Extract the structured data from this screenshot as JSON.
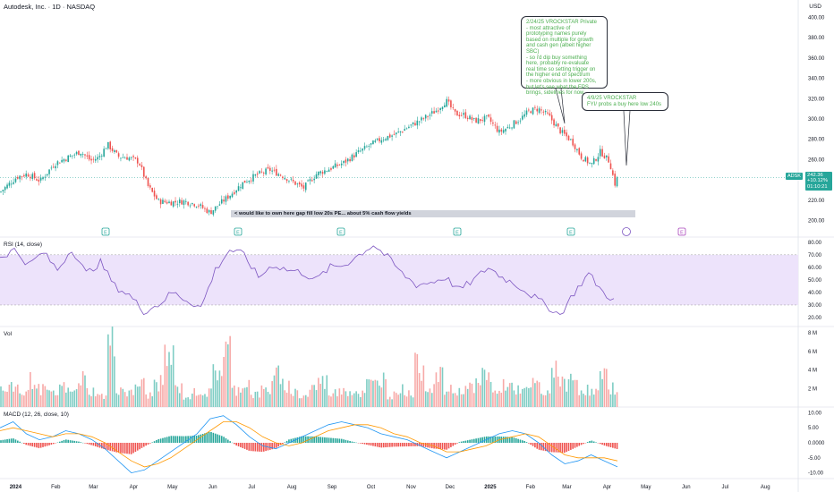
{
  "header": {
    "title": "Autodesk, Inc. · 1D · NASDAQ",
    "currency": "USD"
  },
  "annotations": [
    {
      "lines": [
        "2/24/25 VROCKSTAR Private",
        "- most attractive of",
        "prototyping names purely",
        "based on multiple for growth",
        "and cash gen (albeit higher",
        "SBC)",
        "- so i'd dip buy something",
        "here, probably re-evaluate",
        "real time so setting trigger on",
        "the higher end of spectrum",
        "- more obvious in lower 200s,",
        "but let's see what the EPS",
        "brings, sidelines for now"
      ]
    },
    {
      "lines": [
        "4/9/25 VROCKSTAR",
        "FYI/ probs a buy here low 240s"
      ]
    }
  ],
  "gap_note": "< would like to own here gap fill low 20s PE... about 5% cash flow yields",
  "price_tag": {
    "ticker": "ADSK",
    "price": "242.36",
    "change": "+10.12%",
    "countdown": "01:10:21"
  },
  "event_markers": [
    "E",
    "E",
    "E",
    "E",
    "E",
    "E"
  ],
  "rsi_label": "RSI (14, close)",
  "vol_label": "Vol",
  "macd_label": "MACD (12, 26, close, 10)",
  "colors": {
    "up": "#26a69a",
    "down": "#ef5350",
    "rsi": "#7e57c2",
    "macd": "#2196f3",
    "signal": "#ff9800",
    "rsi_band": "#ede3fb"
  },
  "chart_data": [
    {
      "type": "candlestick",
      "title": "Autodesk, Inc. · 1D · NASDAQ",
      "ylim": [
        190,
        410
      ],
      "yticks": [
        "400.00",
        "380.00",
        "360.00",
        "340.00",
        "320.00",
        "300.00",
        "280.00",
        "260.00",
        "220.00",
        "200.00"
      ],
      "x_labels": [
        "2024",
        "Feb",
        "Mar",
        "Apr",
        "May",
        "Jun",
        "Jul",
        "Aug",
        "Sep",
        "Oct",
        "Nov",
        "Dec",
        "2025",
        "Feb",
        "Mar",
        "Apr",
        "May",
        "Jun",
        "Jul",
        "Aug"
      ],
      "x_dates": [
        "2024-01-01",
        "2024-02-01",
        "2024-03-01",
        "2024-04-01",
        "2024-05-01",
        "2024-06-01",
        "2024-07-01",
        "2024-08-01",
        "2024-09-01",
        "2024-10-01",
        "2024-11-01",
        "2024-12-01",
        "2025-01-01",
        "2025-02-01",
        "2025-03-01",
        "2025-04-01",
        "2025-05-01",
        "2025-06-01",
        "2025-07-01",
        "2025-08-01"
      ],
      "close_path": [
        [
          "2023-12-20",
          228
        ],
        [
          "2024-01-02",
          243
        ],
        [
          "2024-01-10",
          246
        ],
        [
          "2024-01-20",
          239
        ],
        [
          "2024-01-31",
          256
        ],
        [
          "2024-02-10",
          262
        ],
        [
          "2024-02-20",
          268
        ],
        [
          "2024-02-28",
          259
        ],
        [
          "2024-03-05",
          262
        ],
        [
          "2024-03-12",
          275
        ],
        [
          "2024-03-20",
          263
        ],
        [
          "2024-03-28",
          262
        ],
        [
          "2024-04-05",
          258
        ],
        [
          "2024-04-12",
          234
        ],
        [
          "2024-04-20",
          219
        ],
        [
          "2024-04-30",
          218
        ],
        [
          "2024-05-10",
          219
        ],
        [
          "2024-05-20",
          216
        ],
        [
          "2024-05-30",
          208
        ],
        [
          "2024-06-05",
          215
        ],
        [
          "2024-06-15",
          226
        ],
        [
          "2024-06-25",
          238
        ],
        [
          "2024-07-05",
          245
        ],
        [
          "2024-07-15",
          250
        ],
        [
          "2024-07-25",
          244
        ],
        [
          "2024-08-02",
          238
        ],
        [
          "2024-08-10",
          232
        ],
        [
          "2024-08-20",
          246
        ],
        [
          "2024-08-30",
          251
        ],
        [
          "2024-09-10",
          257
        ],
        [
          "2024-09-20",
          266
        ],
        [
          "2024-09-30",
          274
        ],
        [
          "2024-10-10",
          281
        ],
        [
          "2024-10-20",
          285
        ],
        [
          "2024-10-31",
          293
        ],
        [
          "2024-11-10",
          300
        ],
        [
          "2024-11-20",
          308
        ],
        [
          "2024-11-28",
          318
        ],
        [
          "2024-12-05",
          305
        ],
        [
          "2024-12-12",
          304
        ],
        [
          "2024-12-20",
          298
        ],
        [
          "2024-12-30",
          301
        ],
        [
          "2025-01-08",
          287
        ],
        [
          "2025-01-15",
          292
        ],
        [
          "2025-01-25",
          301
        ],
        [
          "2025-01-31",
          308
        ],
        [
          "2025-02-07",
          310
        ],
        [
          "2025-02-15",
          303
        ],
        [
          "2025-02-24",
          288
        ],
        [
          "2025-03-05",
          278
        ],
        [
          "2025-03-12",
          263
        ],
        [
          "2025-03-20",
          255
        ],
        [
          "2025-03-27",
          268
        ],
        [
          "2025-04-03",
          258
        ],
        [
          "2025-04-07",
          236
        ],
        [
          "2025-04-09",
          242
        ]
      ],
      "last_close": 242.36
    },
    {
      "type": "line",
      "title": "RSI (14, close)",
      "ylim": [
        15,
        82
      ],
      "yticks": [
        "80.00",
        "70.00",
        "60.00",
        "50.00",
        "40.00",
        "30.00",
        "20.00"
      ],
      "band": [
        30,
        70
      ],
      "series": [
        {
          "values": [
            68,
            74,
            62,
            72,
            58,
            75,
            55,
            64,
            45,
            38,
            25,
            30,
            40,
            34,
            28,
            58,
            74,
            70,
            52,
            62,
            58,
            56,
            50,
            60,
            62,
            70,
            78,
            68,
            55,
            46,
            48,
            52,
            42,
            50,
            60,
            52,
            46,
            38,
            30,
            22,
            40,
            55,
            40,
            32
          ]
        }
      ]
    },
    {
      "type": "bar",
      "title": "Vol",
      "ylim": [
        0,
        8
      ],
      "yticks": [
        "8 M",
        "6 M",
        "4 M",
        "2 M"
      ],
      "units": "M",
      "series": [
        {
          "values": [
            2.1,
            2.6,
            1.8,
            3.4,
            2.2,
            1.6,
            2.5,
            1.9,
            3.6,
            2.0,
            1.4,
            7.9,
            2.3,
            1.7,
            2.9,
            1.5,
            3.0,
            6.2,
            2.4,
            1.3,
            2.0,
            1.8,
            4.6,
            7.3,
            2.2,
            3.1,
            1.6,
            2.1,
            4.0,
            2.7,
            1.9,
            1.4,
            2.5,
            3.2,
            1.8,
            2.4,
            2.0,
            1.7,
            2.9,
            3.6,
            1.5,
            2.2,
            1.8,
            5.1,
            2.6,
            3.8,
            2.1,
            1.9,
            2.5,
            2.7,
            4.1,
            1.8,
            3.0,
            2.3,
            2.0,
            2.8,
            1.6,
            5.2,
            2.9,
            3.4,
            2.2,
            1.9,
            3.7,
            2.4
          ]
        }
      ]
    },
    {
      "type": "line",
      "title": "MACD (12, 26, close, 10)",
      "ylim": [
        -11,
        11
      ],
      "yticks": [
        "10.00",
        "5.00",
        "0.0000",
        "-5.00",
        "-10.00"
      ],
      "series": [
        {
          "name": "MACD",
          "values": [
            5,
            7,
            3,
            1,
            2,
            4,
            3,
            1,
            -2,
            -6,
            -10,
            -9,
            -6,
            -3,
            0,
            3,
            8,
            9,
            6,
            2,
            -1,
            -2,
            0,
            2,
            4,
            6,
            7,
            6,
            5,
            3,
            2,
            1,
            -1,
            -3,
            -5,
            -3,
            -1,
            1,
            3,
            4,
            3,
            0,
            -4,
            -7,
            -6,
            -4,
            -6,
            -8
          ]
        },
        {
          "name": "Signal",
          "values": [
            4,
            5,
            4,
            3,
            2,
            3,
            3,
            2,
            0,
            -3,
            -6,
            -8,
            -7,
            -5,
            -2,
            1,
            4,
            7,
            7,
            5,
            2,
            0,
            -1,
            0,
            2,
            4,
            5,
            6,
            6,
            5,
            3,
            2,
            0,
            -1,
            -3,
            -3,
            -2,
            -1,
            1,
            2,
            3,
            2,
            -1,
            -4,
            -5,
            -5,
            -5,
            -6
          ]
        }
      ],
      "histogram": [
        0.8,
        1.5,
        -0.7,
        -1.8,
        -0.5,
        1.1,
        0.4,
        -0.8,
        -2.2,
        -3.3,
        -3.8,
        -1.2,
        1.1,
        2.3,
        2.2,
        2.4,
        3.7,
        2.1,
        -0.9,
        -2.7,
        -3.0,
        -1.8,
        1.1,
        2.2,
        2.1,
        1.7,
        1.3,
        0.2,
        -0.7,
        -1.6,
        -1.3,
        -1.2,
        -1.1,
        -1.9,
        -2.3,
        0.3,
        1.2,
        2.1,
        2.1,
        1.9,
        0.5,
        -2.3,
        -3.1,
        -3.3,
        -1.2,
        0.8,
        -0.9,
        -2.1
      ]
    }
  ]
}
